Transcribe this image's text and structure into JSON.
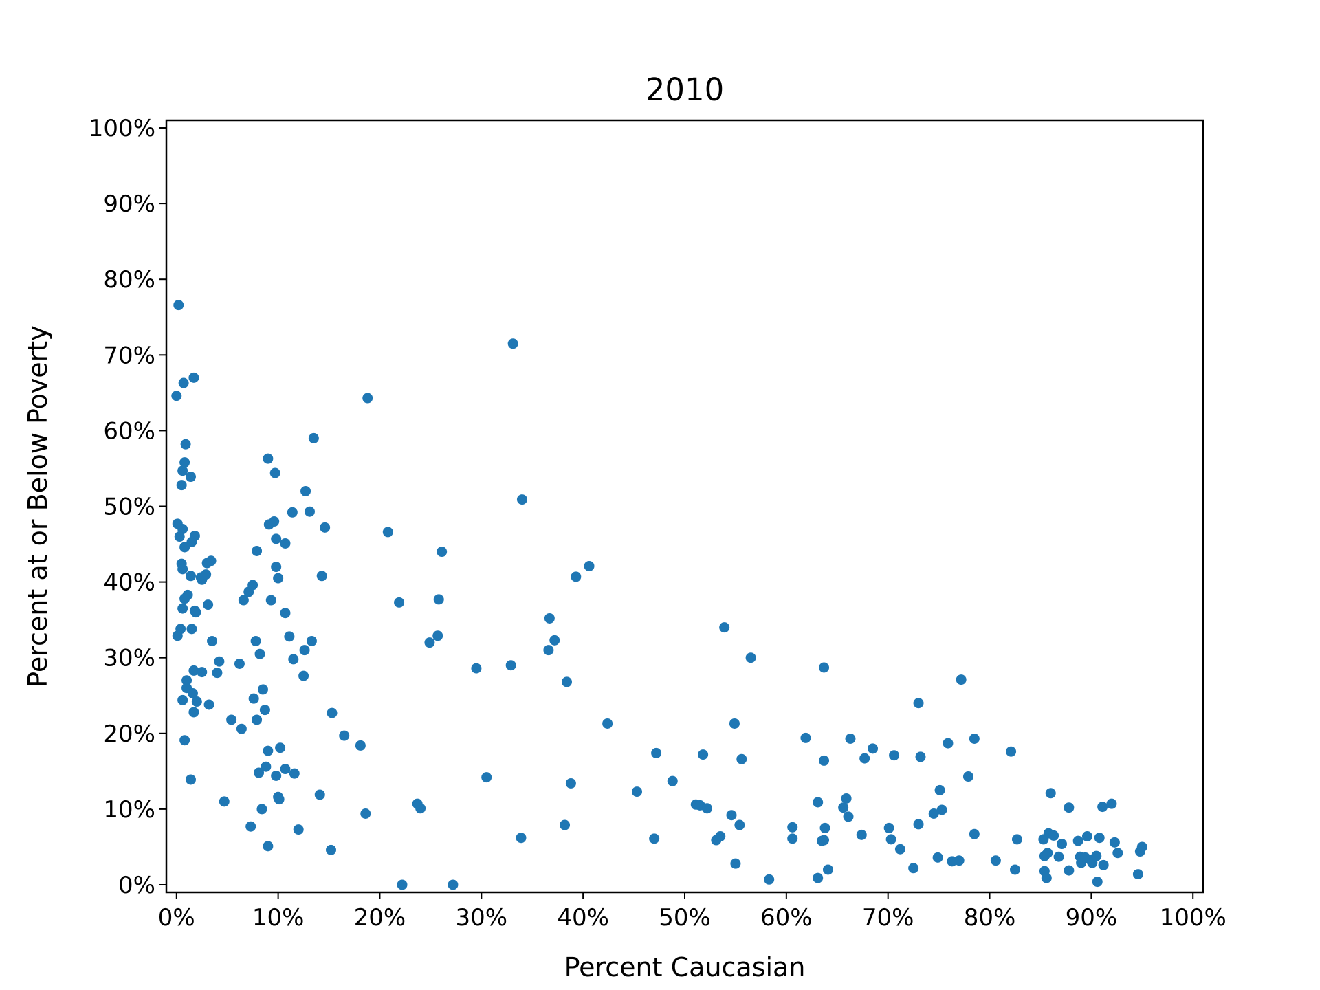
{
  "chart_data": {
    "type": "scatter",
    "title": "2010",
    "xlabel": "Percent Caucasian",
    "ylabel": "Percent at or Below Poverty",
    "xlim": [
      -1,
      101
    ],
    "ylim": [
      -1,
      101
    ],
    "x_ticks": [
      0,
      10,
      20,
      30,
      40,
      50,
      60,
      70,
      80,
      90,
      100
    ],
    "x_tick_labels": [
      "0%",
      "10%",
      "20%",
      "30%",
      "40%",
      "50%",
      "60%",
      "70%",
      "80%",
      "90%",
      "100%"
    ],
    "y_ticks": [
      0,
      10,
      20,
      30,
      40,
      50,
      60,
      70,
      80,
      90,
      100
    ],
    "y_tick_labels": [
      "0%",
      "10%",
      "20%",
      "30%",
      "40%",
      "50%",
      "60%",
      "70%",
      "80%",
      "90%",
      "100%"
    ],
    "grid": false,
    "marker_color": "#1f77b4",
    "points": [
      [
        0.2,
        76.6
      ],
      [
        0.0,
        64.6
      ],
      [
        0.7,
        66.3
      ],
      [
        1.7,
        67.0
      ],
      [
        0.9,
        58.2
      ],
      [
        0.8,
        55.8
      ],
      [
        0.6,
        54.7
      ],
      [
        1.4,
        53.9
      ],
      [
        0.5,
        52.8
      ],
      [
        0.1,
        47.7
      ],
      [
        0.6,
        47.0
      ],
      [
        0.3,
        46.0
      ],
      [
        1.8,
        46.1
      ],
      [
        1.5,
        45.3
      ],
      [
        0.8,
        44.6
      ],
      [
        0.5,
        42.4
      ],
      [
        0.6,
        41.7
      ],
      [
        1.4,
        40.8
      ],
      [
        2.4,
        40.6
      ],
      [
        2.5,
        40.3
      ],
      [
        2.9,
        41.0
      ],
      [
        3.0,
        42.5
      ],
      [
        3.4,
        42.8
      ],
      [
        1.1,
        38.3
      ],
      [
        0.8,
        37.8
      ],
      [
        3.1,
        37.0
      ],
      [
        0.6,
        36.5
      ],
      [
        1.8,
        36.2
      ],
      [
        1.9,
        36.0
      ],
      [
        0.4,
        33.8
      ],
      [
        1.5,
        33.8
      ],
      [
        0.1,
        32.9
      ],
      [
        3.5,
        32.2
      ],
      [
        4.2,
        29.5
      ],
      [
        4.0,
        28.0
      ],
      [
        1.7,
        28.3
      ],
      [
        2.5,
        28.1
      ],
      [
        1.0,
        27.0
      ],
      [
        1.0,
        26.0
      ],
      [
        1.6,
        25.3
      ],
      [
        0.6,
        24.4
      ],
      [
        2.0,
        24.2
      ],
      [
        3.2,
        23.8
      ],
      [
        1.7,
        22.8
      ],
      [
        0.8,
        19.1
      ],
      [
        1.4,
        13.9
      ],
      [
        4.7,
        11.0
      ],
      [
        5.4,
        21.8
      ],
      [
        6.4,
        20.6
      ],
      [
        6.2,
        29.2
      ],
      [
        6.6,
        37.6
      ],
      [
        7.1,
        38.7
      ],
      [
        7.5,
        39.6
      ],
      [
        7.9,
        44.1
      ],
      [
        7.6,
        24.6
      ],
      [
        7.8,
        32.2
      ],
      [
        8.2,
        30.5
      ],
      [
        7.9,
        21.8
      ],
      [
        8.5,
        25.8
      ],
      [
        8.7,
        23.1
      ],
      [
        9.0,
        17.7
      ],
      [
        8.8,
        15.6
      ],
      [
        8.1,
        14.8
      ],
      [
        8.4,
        10.0
      ],
      [
        7.3,
        7.7
      ],
      [
        9.0,
        5.1
      ],
      [
        9.0,
        56.3
      ],
      [
        9.7,
        54.4
      ],
      [
        9.1,
        47.6
      ],
      [
        9.6,
        48.0
      ],
      [
        9.8,
        45.7
      ],
      [
        10.7,
        45.1
      ],
      [
        9.8,
        42.0
      ],
      [
        10.0,
        40.5
      ],
      [
        9.3,
        37.6
      ],
      [
        10.7,
        35.9
      ],
      [
        11.1,
        32.8
      ],
      [
        11.5,
        29.8
      ],
      [
        10.2,
        18.1
      ],
      [
        10.7,
        15.3
      ],
      [
        11.6,
        14.7
      ],
      [
        9.8,
        14.4
      ],
      [
        10.0,
        11.6
      ],
      [
        10.1,
        11.3
      ],
      [
        12.0,
        7.3
      ],
      [
        11.4,
        49.2
      ],
      [
        12.7,
        52.0
      ],
      [
        13.1,
        49.3
      ],
      [
        13.5,
        59.0
      ],
      [
        14.6,
        47.2
      ],
      [
        14.3,
        40.8
      ],
      [
        13.3,
        32.2
      ],
      [
        12.6,
        31.0
      ],
      [
        12.5,
        27.6
      ],
      [
        15.3,
        22.7
      ],
      [
        16.5,
        19.7
      ],
      [
        18.1,
        18.4
      ],
      [
        14.1,
        11.9
      ],
      [
        15.2,
        4.6
      ],
      [
        18.6,
        9.4
      ],
      [
        18.8,
        64.3
      ],
      [
        20.8,
        46.6
      ],
      [
        21.9,
        37.3
      ],
      [
        22.2,
        0.0
      ],
      [
        23.7,
        10.7
      ],
      [
        24.0,
        10.1
      ],
      [
        24.9,
        32.0
      ],
      [
        25.7,
        32.9
      ],
      [
        25.8,
        37.7
      ],
      [
        26.1,
        44.0
      ],
      [
        27.2,
        0.0
      ],
      [
        29.5,
        28.6
      ],
      [
        30.5,
        14.2
      ],
      [
        33.1,
        71.5
      ],
      [
        34.0,
        50.9
      ],
      [
        32.9,
        29.0
      ],
      [
        33.9,
        6.2
      ],
      [
        36.7,
        35.2
      ],
      [
        37.2,
        32.3
      ],
      [
        36.6,
        31.0
      ],
      [
        38.4,
        26.8
      ],
      [
        38.2,
        7.9
      ],
      [
        38.8,
        13.4
      ],
      [
        39.3,
        40.7
      ],
      [
        40.6,
        42.1
      ],
      [
        42.4,
        21.3
      ],
      [
        45.3,
        12.3
      ],
      [
        47.0,
        6.1
      ],
      [
        47.2,
        17.4
      ],
      [
        48.8,
        13.7
      ],
      [
        51.1,
        10.6
      ],
      [
        51.5,
        10.5
      ],
      [
        52.2,
        10.1
      ],
      [
        51.8,
        17.2
      ],
      [
        53.1,
        5.9
      ],
      [
        53.5,
        6.4
      ],
      [
        53.9,
        34.0
      ],
      [
        54.6,
        9.2
      ],
      [
        54.9,
        21.3
      ],
      [
        55.0,
        2.8
      ],
      [
        55.4,
        7.9
      ],
      [
        55.6,
        16.6
      ],
      [
        56.5,
        30.0
      ],
      [
        58.3,
        0.7
      ],
      [
        60.6,
        7.6
      ],
      [
        60.6,
        6.1
      ],
      [
        61.9,
        19.4
      ],
      [
        63.1,
        10.9
      ],
      [
        63.1,
        0.9
      ],
      [
        63.5,
        5.8
      ],
      [
        63.7,
        5.9
      ],
      [
        63.8,
        7.5
      ],
      [
        63.7,
        16.4
      ],
      [
        63.7,
        28.7
      ],
      [
        64.1,
        2.0
      ],
      [
        65.6,
        10.2
      ],
      [
        65.9,
        11.4
      ],
      [
        66.1,
        9.0
      ],
      [
        66.3,
        19.3
      ],
      [
        67.4,
        6.6
      ],
      [
        67.7,
        16.7
      ],
      [
        68.5,
        18.0
      ],
      [
        70.1,
        7.5
      ],
      [
        70.3,
        6.0
      ],
      [
        70.6,
        17.1
      ],
      [
        71.2,
        4.7
      ],
      [
        72.5,
        2.2
      ],
      [
        73.0,
        24.0
      ],
      [
        73.0,
        8.0
      ],
      [
        73.2,
        16.9
      ],
      [
        74.5,
        9.4
      ],
      [
        74.9,
        3.6
      ],
      [
        75.1,
        12.5
      ],
      [
        75.3,
        9.9
      ],
      [
        75.9,
        18.7
      ],
      [
        76.3,
        3.1
      ],
      [
        77.0,
        3.2
      ],
      [
        77.2,
        27.1
      ],
      [
        77.9,
        14.3
      ],
      [
        78.5,
        19.3
      ],
      [
        78.5,
        6.7
      ],
      [
        80.6,
        3.2
      ],
      [
        82.1,
        17.6
      ],
      [
        82.5,
        2.0
      ],
      [
        82.7,
        6.0
      ],
      [
        85.3,
        6.0
      ],
      [
        85.4,
        3.8
      ],
      [
        85.4,
        1.8
      ],
      [
        85.6,
        0.9
      ],
      [
        85.7,
        4.2
      ],
      [
        85.8,
        6.8
      ],
      [
        86.0,
        12.1
      ],
      [
        86.3,
        6.5
      ],
      [
        86.8,
        3.7
      ],
      [
        87.1,
        5.4
      ],
      [
        87.8,
        1.9
      ],
      [
        87.8,
        10.2
      ],
      [
        88.7,
        5.8
      ],
      [
        88.9,
        3.7
      ],
      [
        89.0,
        2.9
      ],
      [
        89.4,
        3.6
      ],
      [
        89.6,
        6.4
      ],
      [
        89.9,
        3.3
      ],
      [
        90.1,
        2.9
      ],
      [
        90.5,
        3.8
      ],
      [
        90.6,
        0.4
      ],
      [
        90.8,
        6.2
      ],
      [
        91.2,
        2.6
      ],
      [
        91.1,
        10.3
      ],
      [
        92.0,
        10.7
      ],
      [
        92.3,
        5.6
      ],
      [
        92.6,
        4.2
      ],
      [
        94.6,
        1.4
      ],
      [
        94.8,
        4.4
      ],
      [
        95.0,
        5.0
      ]
    ]
  }
}
